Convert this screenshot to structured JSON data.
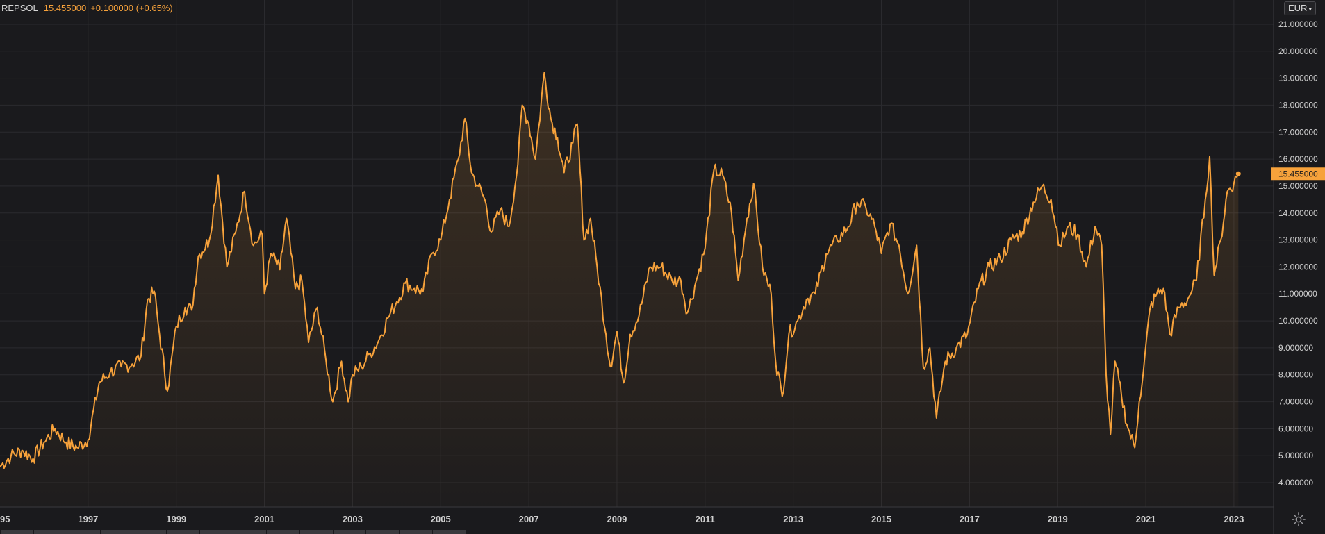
{
  "legend": {
    "symbol": "REPSOL",
    "price": "15.455000",
    "change": "+0.100000 (+0.65%)"
  },
  "currency": {
    "label": "EUR"
  },
  "colors": {
    "background": "#1a1a1d",
    "grid": "#2b2b2f",
    "line": "#f7a23b",
    "area_top": "#f7a23b",
    "axis_text": "#d0d0d0",
    "price_label_text": "#1a1a1d"
  },
  "icons": {
    "settings": "gear-icon",
    "currency_dropdown": "chevron-down-icon"
  },
  "chart_data": {
    "type": "area",
    "title": "",
    "xlabel": "",
    "ylabel": "",
    "y_ticks": [
      "4.000000",
      "5.000000",
      "6.000000",
      "7.000000",
      "8.000000",
      "9.000000",
      "10.000000",
      "11.000000",
      "12.000000",
      "13.000000",
      "14.000000",
      "15.000000",
      "16.000000",
      "17.000000",
      "18.000000",
      "19.000000",
      "20.000000",
      "21.000000"
    ],
    "x_ticks": [
      "95",
      "1997",
      "1999",
      "2001",
      "2003",
      "2005",
      "2007",
      "2009",
      "2011",
      "2013",
      "2015",
      "2017",
      "2019",
      "2021",
      "2023"
    ],
    "xlim": [
      1995.0,
      2023.9
    ],
    "ylim": [
      3.1,
      21.9
    ],
    "last_value": 15.455,
    "last_value_label": "15.455000",
    "grid": true,
    "series": [
      {
        "x": [
          1995.0,
          1995.25,
          1995.5,
          1995.75,
          1996.0,
          1996.25,
          1996.5,
          1996.75,
          1997.0,
          1997.25,
          1997.5,
          1997.75,
          1998.0,
          1998.2,
          1998.35,
          1998.5,
          1998.62,
          1998.8,
          1999.0,
          1999.2,
          1999.35,
          1999.5,
          1999.75,
          1999.95,
          2000.15,
          2000.35,
          2000.55,
          2000.75,
          2000.95,
          2001.0,
          2001.15,
          2001.35,
          2001.5,
          2001.7,
          2001.85,
          2002.0,
          2002.2,
          2002.4,
          2002.55,
          2002.75,
          2002.9,
          2003.0,
          2003.2,
          2003.4,
          2003.6,
          2003.8,
          2004.0,
          2004.2,
          2004.4,
          2004.6,
          2004.8,
          2005.0,
          2005.2,
          2005.4,
          2005.55,
          2005.7,
          2005.85,
          2006.0,
          2006.15,
          2006.35,
          2006.55,
          2006.75,
          2006.85,
          2007.0,
          2007.15,
          2007.35,
          2007.5,
          2007.65,
          2007.8,
          2008.0,
          2008.1,
          2008.25,
          2008.4,
          2008.55,
          2008.75,
          2008.85,
          2009.0,
          2009.15,
          2009.3,
          2009.5,
          2009.75,
          2010.0,
          2010.25,
          2010.45,
          2010.6,
          2010.8,
          2011.0,
          2011.2,
          2011.4,
          2011.6,
          2011.75,
          2011.95,
          2012.1,
          2012.3,
          2012.5,
          2012.6,
          2012.75,
          2012.9,
          2013.1,
          2013.3,
          2013.5,
          2013.75,
          2014.0,
          2014.25,
          2014.45,
          2014.65,
          2014.85,
          2015.0,
          2015.2,
          2015.4,
          2015.6,
          2015.8,
          2015.95,
          2016.1,
          2016.25,
          2016.45,
          2016.7,
          2016.95,
          2017.2,
          2017.45,
          2017.7,
          2017.95,
          2018.2,
          2018.45,
          2018.65,
          2018.85,
          2019.05,
          2019.25,
          2019.45,
          2019.65,
          2019.85,
          2020.0,
          2020.1,
          2020.2,
          2020.3,
          2020.45,
          2020.6,
          2020.75,
          2020.85,
          2020.95,
          2021.1,
          2021.25,
          2021.4,
          2021.55,
          2021.75,
          2021.95,
          2022.15,
          2022.35,
          2022.45,
          2022.55,
          2022.7,
          2022.85,
          2023.0,
          2023.1
        ],
        "values": [
          4.6,
          5.0,
          5.2,
          4.9,
          5.5,
          6.0,
          5.5,
          5.3,
          5.6,
          7.7,
          8.1,
          8.3,
          8.4,
          8.7,
          10.8,
          11.1,
          9.5,
          7.4,
          9.8,
          10.5,
          10.4,
          12.4,
          13.0,
          15.4,
          12.0,
          13.3,
          14.8,
          12.8,
          13.2,
          11.0,
          12.5,
          11.9,
          13.8,
          11.2,
          11.5,
          9.2,
          10.5,
          8.5,
          7.0,
          8.5,
          7.0,
          8.0,
          8.3,
          8.8,
          9.3,
          10.1,
          10.7,
          11.4,
          11.2,
          11.1,
          12.5,
          13.0,
          14.5,
          16.0,
          17.5,
          15.5,
          15.0,
          14.5,
          13.3,
          14.1,
          13.5,
          15.8,
          18.0,
          17.3,
          16.0,
          19.2,
          17.5,
          16.8,
          15.5,
          16.6,
          17.3,
          13.0,
          13.8,
          12.0,
          9.5,
          8.3,
          9.6,
          7.7,
          9.5,
          10.2,
          12.0,
          12.0,
          11.5,
          11.5,
          10.3,
          11.5,
          12.7,
          15.6,
          15.4,
          14.0,
          11.5,
          13.8,
          15.1,
          12.0,
          11.0,
          8.5,
          7.2,
          9.5,
          10.0,
          10.8,
          11.0,
          12.5,
          13.0,
          13.5,
          14.4,
          14.2,
          13.5,
          12.5,
          13.6,
          12.8,
          11.0,
          12.8,
          8.3,
          9.0,
          6.4,
          8.5,
          9.0,
          9.5,
          11.2,
          12.0,
          12.3,
          13.0,
          13.3,
          14.4,
          15.0,
          14.5,
          12.8,
          13.5,
          13.2,
          12.0,
          13.5,
          12.8,
          8.0,
          5.8,
          8.5,
          7.2,
          6.0,
          5.3,
          7.0,
          8.2,
          10.5,
          11.0,
          11.2,
          9.5,
          10.5,
          10.8,
          11.5,
          14.5,
          16.1,
          11.7,
          13.0,
          14.8,
          15.1,
          15.455
        ]
      }
    ]
  }
}
